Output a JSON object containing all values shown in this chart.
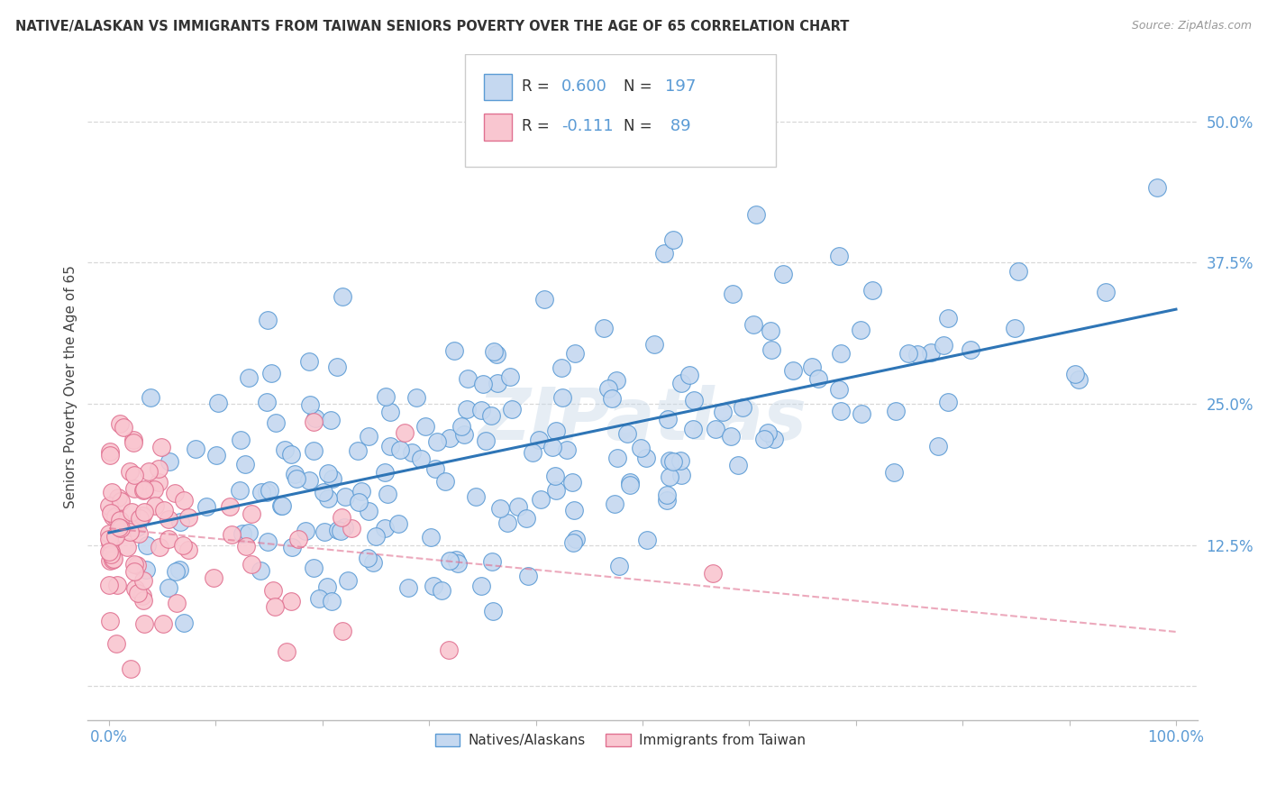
{
  "title": "NATIVE/ALASKAN VS IMMIGRANTS FROM TAIWAN SENIORS POVERTY OVER THE AGE OF 65 CORRELATION CHART",
  "source": "Source: ZipAtlas.com",
  "ylabel": "Seniors Poverty Over the Age of 65",
  "xlim": [
    -0.02,
    1.02
  ],
  "ylim": [
    -0.03,
    0.56
  ],
  "x_ticks": [
    0.0,
    0.1,
    0.2,
    0.3,
    0.4,
    0.5,
    0.6,
    0.7,
    0.8,
    0.9,
    1.0
  ],
  "y_tick_positions": [
    0.0,
    0.125,
    0.25,
    0.375,
    0.5
  ],
  "y_tick_labels": [
    "",
    "12.5%",
    "25.0%",
    "37.5%",
    "50.0%"
  ],
  "blue_face_color": "#c5d8f0",
  "blue_edge_color": "#5b9bd5",
  "pink_face_color": "#f9c6d0",
  "pink_edge_color": "#e07090",
  "blue_line_color": "#2e75b6",
  "pink_line_color": "#e07090",
  "tick_color": "#5b9bd5",
  "watermark": "ZIPatlas",
  "background_color": "#ffffff",
  "grid_color": "#c8c8c8",
  "r_blue": 0.6,
  "r_pink": -0.111,
  "n_blue": 197,
  "n_pink": 89,
  "seed_blue": 42,
  "seed_pink": 7
}
